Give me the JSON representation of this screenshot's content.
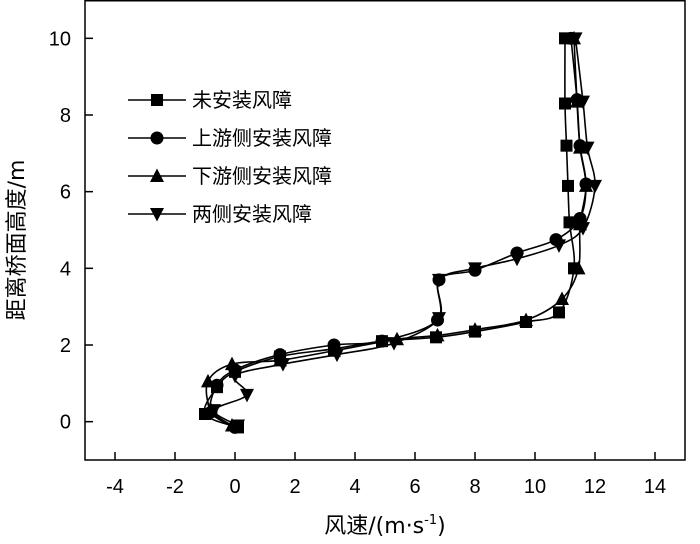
{
  "chart_data": {
    "type": "line",
    "xlabel": "风速/(m·s",
    "xlabel_sup": "-1",
    "xlabel_close": ")",
    "ylabel": "距离桥面高度/m",
    "xlim": [
      -5,
      15
    ],
    "ylim": [
      -1,
      11
    ],
    "xticks": [
      -4,
      -2,
      0,
      2,
      4,
      6,
      8,
      10,
      12,
      14
    ],
    "yticks": [
      0,
      2,
      4,
      6,
      8,
      10
    ],
    "grid": false,
    "legend_position": "upper-left",
    "series": [
      {
        "name": "未安装风障",
        "marker": "square",
        "points": [
          [
            11.0,
            10.0
          ],
          [
            11.0,
            8.3
          ],
          [
            11.05,
            7.2
          ],
          [
            11.1,
            6.15
          ],
          [
            11.15,
            5.2
          ],
          [
            11.3,
            4.0
          ],
          [
            10.8,
            2.85
          ],
          [
            9.7,
            2.6
          ],
          [
            8.0,
            2.35
          ],
          [
            6.7,
            2.2
          ],
          [
            4.9,
            2.1
          ],
          [
            3.3,
            1.9
          ],
          [
            1.5,
            1.7
          ],
          [
            0.0,
            1.3
          ],
          [
            -0.6,
            0.9
          ],
          [
            -1.0,
            0.2
          ],
          [
            0.1,
            -0.15
          ]
        ]
      },
      {
        "name": "上游侧安装风障",
        "marker": "circle",
        "points": [
          [
            11.2,
            10.0
          ],
          [
            11.4,
            8.4
          ],
          [
            11.5,
            7.2
          ],
          [
            11.7,
            6.2
          ],
          [
            11.5,
            5.3
          ],
          [
            10.7,
            4.75
          ],
          [
            9.4,
            4.4
          ],
          [
            8.0,
            3.95
          ],
          [
            6.8,
            3.7
          ],
          [
            6.75,
            2.65
          ],
          [
            4.9,
            2.1
          ],
          [
            3.3,
            2.0
          ],
          [
            1.5,
            1.75
          ],
          [
            0.0,
            1.35
          ],
          [
            -0.6,
            0.95
          ],
          [
            -0.8,
            0.25
          ],
          [
            0.0,
            -0.15
          ]
        ]
      },
      {
        "name": "下游侧安装风障",
        "marker": "triangle-up",
        "points": [
          [
            11.3,
            10.0
          ],
          [
            11.4,
            8.35
          ],
          [
            11.5,
            7.15
          ],
          [
            11.7,
            6.15
          ],
          [
            11.5,
            5.15
          ],
          [
            11.45,
            4.0
          ],
          [
            10.9,
            3.2
          ],
          [
            9.7,
            2.65
          ],
          [
            8.0,
            2.4
          ],
          [
            6.75,
            2.25
          ],
          [
            5.4,
            2.15
          ],
          [
            3.3,
            1.85
          ],
          [
            1.5,
            1.6
          ],
          [
            -0.1,
            1.5
          ],
          [
            -0.9,
            1.05
          ],
          [
            -0.8,
            0.3
          ],
          [
            -0.1,
            -0.1
          ]
        ]
      },
      {
        "name": "两侧安装风障",
        "marker": "triangle-down",
        "points": [
          [
            11.35,
            10.0
          ],
          [
            11.6,
            8.35
          ],
          [
            11.75,
            7.15
          ],
          [
            12.0,
            6.15
          ],
          [
            11.6,
            5.05
          ],
          [
            10.8,
            4.6
          ],
          [
            9.4,
            4.25
          ],
          [
            8.0,
            4.0
          ],
          [
            6.8,
            3.7
          ],
          [
            6.8,
            2.7
          ],
          [
            5.3,
            2.05
          ],
          [
            3.4,
            1.75
          ],
          [
            1.6,
            1.5
          ],
          [
            0.0,
            1.2
          ],
          [
            0.4,
            0.7
          ],
          [
            -0.7,
            0.3
          ],
          [
            0.1,
            -0.1
          ]
        ]
      }
    ]
  }
}
